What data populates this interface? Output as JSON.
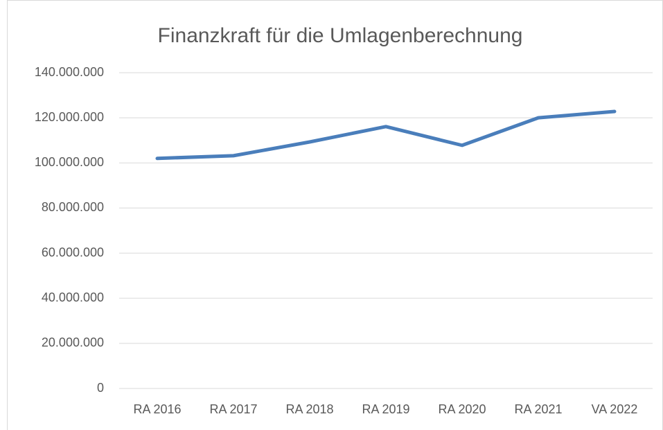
{
  "chart_data": {
    "type": "line",
    "title": "Finanzkraft für die Umlagenberechnung",
    "categories": [
      "RA 2016",
      "RA 2017",
      "RA 2018",
      "RA 2019",
      "RA 2020",
      "RA 2021",
      "VA 2022"
    ],
    "values": [
      102000000,
      103200000,
      109300000,
      116100000,
      107800000,
      120000000,
      122800000
    ],
    "color": "#4a7ebb",
    "ylim": [
      0,
      140000000
    ],
    "yticks": [
      0,
      {
        "value": 20000000,
        "label": "20.000.000"
      },
      {
        "value": 40000000,
        "label": "40.000.000"
      },
      {
        "value": 60000000,
        "label": "60.000.000"
      },
      {
        "value": 80000000,
        "label": "80.000.000"
      },
      {
        "value": 100000000,
        "label": "100.000.000"
      },
      {
        "value": 120000000,
        "label": "120.000.000"
      },
      {
        "value": 140000000,
        "label": "140.000.000"
      }
    ],
    "grid": true
  }
}
